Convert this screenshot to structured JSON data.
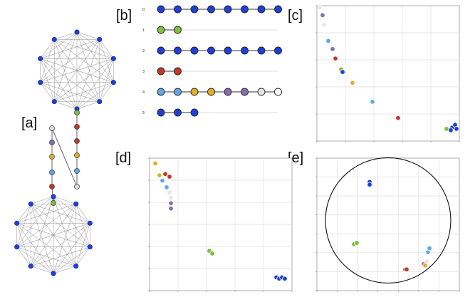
{
  "panels": {
    "a": {
      "label": "[a]"
    },
    "b": {
      "label": "[b]"
    },
    "c": {
      "label": "[c]"
    },
    "d": {
      "label": "[d]"
    },
    "e": {
      "label": "[e]"
    }
  },
  "colors": {
    "blue": "#1f3fd8",
    "light_blue": "#5ea8e6",
    "green": "#7dbf3f",
    "red": "#c0392b",
    "gold": "#e3ad2a",
    "purple": "#8a6bb0",
    "light_gray": "#e6e6e6",
    "edge": "#888888",
    "edge_light": "#cccccc"
  },
  "graph_a": {
    "top_clique_size": 10,
    "bottom_clique_size": 10,
    "path_left_colors": [
      "gray",
      "purple",
      "gold",
      "light_blue",
      "red",
      "green"
    ],
    "path_right_colors": [
      "green",
      "red",
      "red",
      "gold",
      "light_blue",
      "gray"
    ]
  },
  "panel_b": {
    "rows": [
      {
        "index": "0",
        "colors": [
          "blue",
          "blue",
          "blue",
          "blue",
          "blue",
          "blue",
          "blue",
          "blue"
        ]
      },
      {
        "index": "1",
        "colors": [
          "green",
          "green"
        ]
      },
      {
        "index": "2",
        "colors": [
          "blue",
          "blue",
          "blue",
          "blue",
          "blue",
          "blue",
          "blue",
          "blue"
        ]
      },
      {
        "index": "3",
        "colors": [
          "red",
          "red"
        ]
      },
      {
        "index": "4",
        "colors": [
          "light_blue",
          "light_blue",
          "gold",
          "gold",
          "purple",
          "purple",
          "light_gray",
          "white"
        ]
      },
      {
        "index": "5",
        "colors": [
          "blue",
          "blue",
          "blue"
        ]
      }
    ]
  },
  "chart_data": [
    {
      "panel": "c",
      "type": "scatter",
      "xlim": [
        0,
        1
      ],
      "ylim": [
        0,
        1
      ],
      "points": [
        {
          "x": 0.02,
          "y": 0.99,
          "color": "light_gray"
        },
        {
          "x": 0.04,
          "y": 0.93,
          "color": "purple"
        },
        {
          "x": 0.05,
          "y": 0.86,
          "color": "light_gray"
        },
        {
          "x": 0.08,
          "y": 0.74,
          "color": "light_blue"
        },
        {
          "x": 0.11,
          "y": 0.68,
          "color": "purple"
        },
        {
          "x": 0.13,
          "y": 0.61,
          "color": "red"
        },
        {
          "x": 0.17,
          "y": 0.53,
          "color": "green"
        },
        {
          "x": 0.18,
          "y": 0.51,
          "color": "blue"
        },
        {
          "x": 0.25,
          "y": 0.43,
          "color": "gold"
        },
        {
          "x": 0.39,
          "y": 0.29,
          "color": "light_blue"
        },
        {
          "x": 0.57,
          "y": 0.17,
          "color": "red"
        },
        {
          "x": 0.91,
          "y": 0.09,
          "color": "green"
        },
        {
          "x": 0.95,
          "y": 0.1,
          "color": "blue"
        },
        {
          "x": 0.97,
          "y": 0.12,
          "color": "blue"
        },
        {
          "x": 0.98,
          "y": 0.09,
          "color": "blue"
        },
        {
          "x": 0.94,
          "y": 0.08,
          "color": "blue"
        }
      ]
    },
    {
      "panel": "d",
      "type": "scatter",
      "xlim": [
        0,
        1
      ],
      "ylim": [
        0,
        1
      ],
      "points": [
        {
          "x": 0.04,
          "y": 0.96,
          "color": "gold"
        },
        {
          "x": 0.07,
          "y": 0.87,
          "color": "gold"
        },
        {
          "x": 0.09,
          "y": 0.83,
          "color": "light_blue"
        },
        {
          "x": 0.11,
          "y": 0.88,
          "color": "red"
        },
        {
          "x": 0.14,
          "y": 0.86,
          "color": "red"
        },
        {
          "x": 0.12,
          "y": 0.78,
          "color": "light_blue"
        },
        {
          "x": 0.14,
          "y": 0.74,
          "color": "light_gray"
        },
        {
          "x": 0.15,
          "y": 0.7,
          "color": "light_gray"
        },
        {
          "x": 0.15,
          "y": 0.66,
          "color": "purple"
        },
        {
          "x": 0.15,
          "y": 0.62,
          "color": "purple"
        },
        {
          "x": 0.42,
          "y": 0.3,
          "color": "green"
        },
        {
          "x": 0.44,
          "y": 0.28,
          "color": "green"
        },
        {
          "x": 0.89,
          "y": 0.1,
          "color": "blue"
        },
        {
          "x": 0.91,
          "y": 0.09,
          "color": "blue"
        },
        {
          "x": 0.93,
          "y": 0.1,
          "color": "blue"
        },
        {
          "x": 0.95,
          "y": 0.09,
          "color": "blue"
        }
      ]
    },
    {
      "panel": "e",
      "type": "scatter",
      "xlim": [
        0,
        1
      ],
      "ylim": [
        0,
        1
      ],
      "circle": {
        "cx": 0.5,
        "cy": 0.53,
        "r": 0.44
      },
      "points": [
        {
          "x": 0.37,
          "y": 0.82,
          "color": "blue"
        },
        {
          "x": 0.37,
          "y": 0.8,
          "color": "blue"
        },
        {
          "x": 0.26,
          "y": 0.35,
          "color": "green"
        },
        {
          "x": 0.28,
          "y": 0.36,
          "color": "green"
        },
        {
          "x": 0.62,
          "y": 0.16,
          "color": "red"
        },
        {
          "x": 0.63,
          "y": 0.16,
          "color": "red"
        },
        {
          "x": 0.75,
          "y": 0.2,
          "color": "purple"
        },
        {
          "x": 0.77,
          "y": 0.22,
          "color": "light_gray"
        },
        {
          "x": 0.76,
          "y": 0.19,
          "color": "gold"
        },
        {
          "x": 0.78,
          "y": 0.29,
          "color": "light_blue"
        },
        {
          "x": 0.79,
          "y": 0.32,
          "color": "light_blue"
        }
      ]
    }
  ]
}
